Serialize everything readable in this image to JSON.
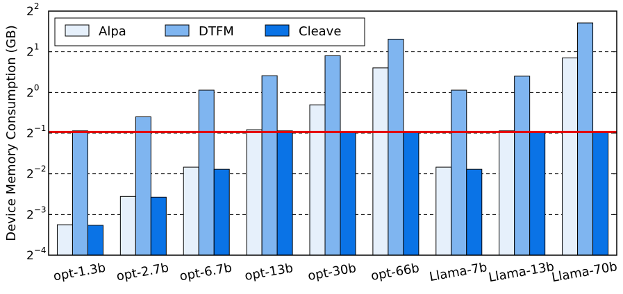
{
  "chart_data": {
    "type": "bar",
    "ylabel": "Device Memory Consumption (GB)",
    "y_scale": "log2",
    "ylim": [
      0.0625,
      4
    ],
    "y_ticks": [
      {
        "value": 4,
        "base": "2",
        "exp": "2"
      },
      {
        "value": 2,
        "base": "2",
        "exp": "1"
      },
      {
        "value": 1,
        "base": "2",
        "exp": "0"
      },
      {
        "value": 0.5,
        "base": "2",
        "exp": "−1"
      },
      {
        "value": 0.25,
        "base": "2",
        "exp": "−2"
      },
      {
        "value": 0.125,
        "base": "2",
        "exp": "−3"
      },
      {
        "value": 0.0625,
        "base": "2",
        "exp": "−4"
      }
    ],
    "grid": "horizontal dashed",
    "legend_position": "top-left",
    "categories": [
      "opt-1.3b",
      "opt-2.7b",
      "opt-6.7b",
      "opt-13b",
      "opt-30b",
      "opt-66b",
      "Llama-7b",
      "Llama-13b",
      "Llama-70b"
    ],
    "series": [
      {
        "name": "Alpa",
        "color": "#e6f0fb",
        "values": [
          0.105,
          0.17,
          0.28,
          0.53,
          0.81,
          1.52,
          0.28,
          0.52,
          1.8
        ]
      },
      {
        "name": "DTFM",
        "color": "#7fb5f0",
        "values": [
          0.52,
          0.66,
          1.04,
          1.33,
          1.87,
          2.48,
          1.04,
          1.32,
          3.27
        ]
      },
      {
        "name": "Cleave",
        "color": "#0a73e6",
        "values": [
          0.104,
          0.168,
          0.27,
          0.52,
          0.505,
          0.505,
          0.27,
          0.515,
          0.505
        ]
      }
    ],
    "reference_line": {
      "value": 0.51,
      "color": "#e60000"
    }
  }
}
